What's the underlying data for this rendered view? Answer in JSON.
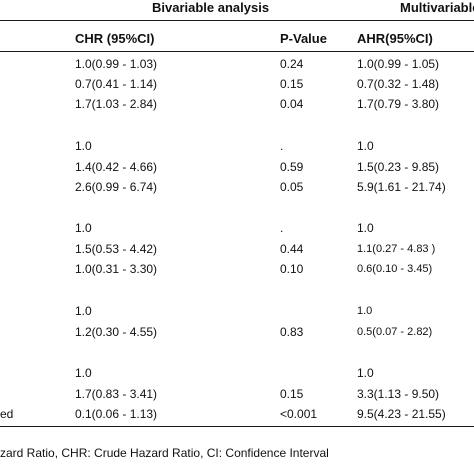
{
  "header": {
    "group_bivariable": "Bivariable analysis",
    "group_multivariable": "Multivariable"
  },
  "columns": {
    "chr": "CHR (95%CI)",
    "pvalue": "P-Value",
    "ahr": "AHR(95%CI)"
  },
  "rows": [
    {
      "label": "",
      "chr": "1.0(0.99 - 1.03)",
      "p": "0.24",
      "ahr": "1.0(0.99 - 1.05)"
    },
    {
      "label": "",
      "chr": "0.7(0.41 - 1.14)",
      "p": "0.15",
      "ahr": "0.7(0.32 - 1.48)"
    },
    {
      "label": "",
      "chr": "1.7(1.03 - 2.84)",
      "p": "0.04",
      "ahr": "1.7(0.79 - 3.80)"
    },
    {
      "label": "",
      "chr": "1.0",
      "p": ".",
      "ahr": "1.0"
    },
    {
      "label": "",
      "chr": "1.4(0.42 - 4.66)",
      "p": "0.59",
      "ahr": "1.5(0.23 - 9.85)"
    },
    {
      "label": "",
      "chr": "2.6(0.99 - 6.74)",
      "p": "0.05",
      "ahr": "5.9(1.61 - 21.74)"
    },
    {
      "label": "",
      "chr": "1.0",
      "p": ".",
      "ahr": "1.0"
    },
    {
      "label": "",
      "chr": "1.5(0.53 - 4.42)",
      "p": "0.44",
      "ahr": "1.1(0.27 - 4.83 )"
    },
    {
      "label": "",
      "chr": "1.0(0.31 - 3.30)",
      "p": "0.10",
      "ahr": "0.6(0.10 - 3.45)"
    },
    {
      "label": "",
      "chr": "1.0",
      "p": "",
      "ahr": "1.0"
    },
    {
      "label": "",
      "chr": "1.2(0.30 - 4.55)",
      "p": "0.83",
      "ahr": "0.5(0.07 - 2.82)"
    },
    {
      "label": "",
      "chr": "1.0",
      "p": "",
      "ahr": "1.0"
    },
    {
      "label": "",
      "chr": "1.7(0.83 - 3.41)",
      "p": "0.15",
      "ahr": "3.3(1.13 - 9.50)"
    },
    {
      "label": "ed",
      "chr": "0.1(0.06 - 1.13)",
      "p": "<0.001",
      "ahr": "9.5(4.23 - 21.55)"
    }
  ],
  "footnote": "zard Ratio, CHR: Crude Hazard Ratio, CI: Confidence Interval"
}
